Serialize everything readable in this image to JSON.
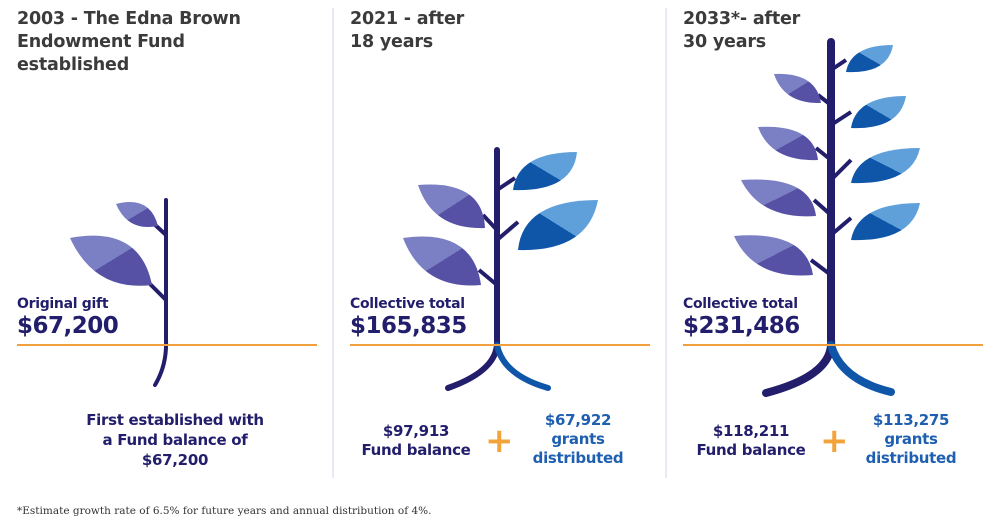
{
  "colors": {
    "title": "#3b3b3b",
    "navy": "#221e6b",
    "blue": "#1f5fb0",
    "orange": "#f0a03c",
    "leaf_purple_light": "#7b7fc4",
    "leaf_purple_dark": "#5751a6",
    "leaf_blue_light": "#5fa0da",
    "leaf_blue_dark": "#0f56a8"
  },
  "panels": [
    {
      "title": "2003 - The Edna Brown\nEndowment Fund\nestablished",
      "label": "Original gift",
      "amount": "$67,200",
      "description": "First established with\na Fund balance of\n$67,200"
    },
    {
      "title": "2021 - after\n18 years",
      "label": "Collective total",
      "amount": "$165,835",
      "fund_balance_value": "$97,913",
      "fund_balance_label": "Fund balance",
      "plus": "+",
      "grants_value": "$67,922",
      "grants_label_1": "grants",
      "grants_label_2": "distributed"
    },
    {
      "title": "2033*- after\n30 years",
      "label": "Collective total",
      "amount": "$231,486",
      "fund_balance_value": "$118,211",
      "fund_balance_label": "Fund balance",
      "plus": "+",
      "grants_value": "$113,275",
      "grants_label_1": "grants",
      "grants_label_2": "distributed"
    }
  ],
  "footnote": "*Estimate growth rate of 6.5% for future years and annual distribution of 4%."
}
